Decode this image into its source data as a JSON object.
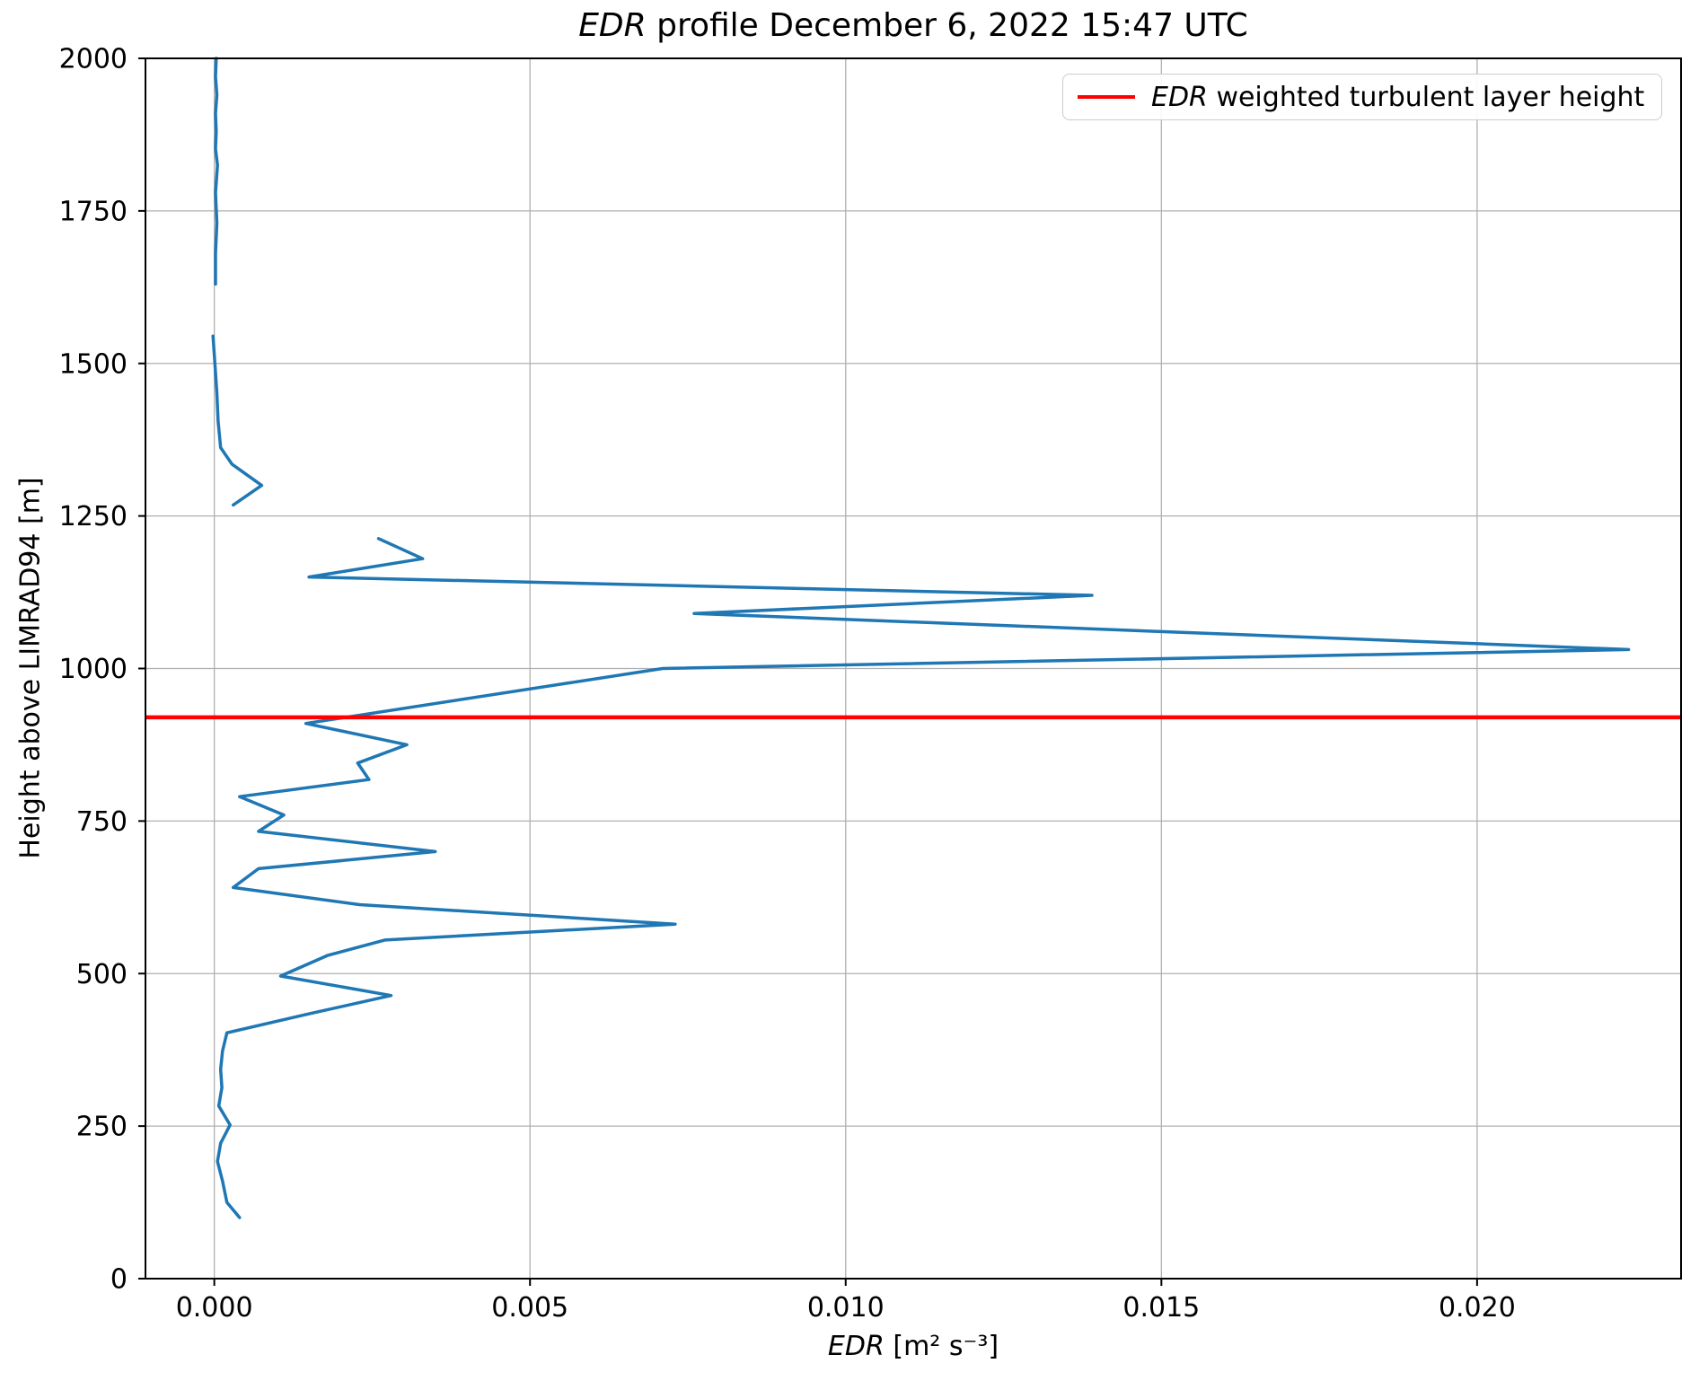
{
  "header": {
    "title_italic": "EDR",
    "title_rest": " profile December 6, 2022 15:47 UTC"
  },
  "axis_labels": {
    "x_italic": "EDR",
    "x_rest": " [m² s⁻³]",
    "y": "Height above LIMRAD94 [m]"
  },
  "legend": {
    "label_italic": "EDR",
    "label_rest": " weighted turbulent layer height",
    "line_color": "#ff0000"
  },
  "chart_data": {
    "type": "line",
    "title": "EDR profile December 6, 2022 15:47 UTC",
    "xlabel": "EDR [m² s⁻³]",
    "ylabel": "Height above LIMRAD94 [m]",
    "xlim": [
      -0.00109,
      0.02323
    ],
    "ylim": [
      0,
      2000
    ],
    "grid": true,
    "grid_color": "#b0b0b0",
    "spine_color": "#000000",
    "legend_position": "upper right",
    "x_ticks": {
      "values": [
        0.0,
        0.005,
        0.01,
        0.015,
        0.02
      ],
      "labels": [
        "0.000",
        "0.005",
        "0.010",
        "0.015",
        "0.020"
      ]
    },
    "y_ticks": {
      "values": [
        0,
        250,
        500,
        750,
        1000,
        1250,
        1500,
        1750,
        2000
      ],
      "labels": [
        "0",
        "250",
        "500",
        "750",
        "1000",
        "1250",
        "1500",
        "1750",
        "2000"
      ]
    },
    "series": [
      {
        "name": "EDR profile",
        "color": "#1f77b4",
        "linewidth": 3.5,
        "x_units": "m2 s-3",
        "y_units": "m",
        "segments": [
          [
            [
              0.0004,
              100
            ],
            [
              0.0002,
              125
            ],
            [
              0.00013,
              160
            ],
            [
              5e-05,
              192
            ],
            [
              0.0001,
              222
            ],
            [
              0.00025,
              252
            ],
            [
              7e-05,
              283
            ],
            [
              0.00012,
              313
            ],
            [
              0.0001,
              343
            ],
            [
              0.00013,
              373
            ],
            [
              0.0002,
              403
            ],
            [
              0.0015,
              434
            ],
            [
              0.0028,
              464
            ],
            [
              0.00105,
              496
            ],
            [
              0.0018,
              530
            ],
            [
              0.0027,
              555
            ],
            [
              0.0073,
              581
            ],
            [
              0.0023,
              613
            ],
            [
              0.0003,
              641
            ],
            [
              0.0007,
              672
            ],
            [
              0.0035,
              700
            ],
            [
              0.0007,
              733
            ],
            [
              0.0011,
              760
            ],
            [
              0.0004,
              790
            ],
            [
              0.00245,
              818
            ],
            [
              0.00227,
              845
            ],
            [
              0.00305,
              875
            ],
            [
              0.00145,
              910
            ],
            [
              0.0071,
              1000
            ],
            [
              0.0224,
              1031
            ],
            [
              0.0076,
              1090
            ],
            [
              0.0139,
              1120
            ],
            [
              0.0015,
              1150
            ],
            [
              0.0033,
              1180
            ],
            [
              0.0026,
              1213
            ]
          ],
          [
            [
              0.0003,
              1268
            ],
            [
              0.00075,
              1300
            ],
            [
              0.00028,
              1335
            ],
            [
              0.0001,
              1362
            ],
            [
              6e-05,
              1405
            ],
            [
              4e-05,
              1452
            ],
            [
              1e-05,
              1500
            ],
            [
              -2e-05,
              1545
            ]
          ],
          [
            [
              2e-05,
              1630
            ],
            [
              2e-05,
              1680
            ],
            [
              4e-05,
              1730
            ],
            [
              2e-05,
              1780
            ],
            [
              5e-05,
              1825
            ],
            [
              2e-05,
              1852
            ],
            [
              3e-05,
              1880
            ],
            [
              2e-05,
              1910
            ],
            [
              4e-05,
              1940
            ],
            [
              2e-05,
              1970
            ],
            [
              3e-05,
              2000
            ]
          ]
        ]
      }
    ],
    "reference_line": {
      "name": "EDR weighted turbulent layer height",
      "color": "#ff0000",
      "linewidth": 4.5,
      "height_m": 920
    }
  }
}
